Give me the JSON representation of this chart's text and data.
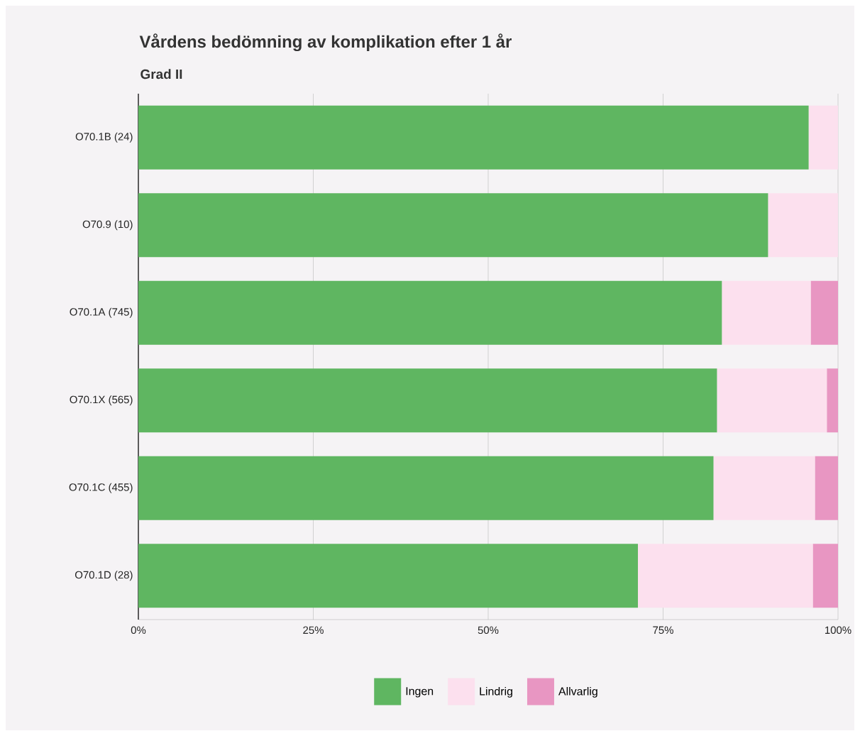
{
  "chart_data": {
    "type": "bar",
    "orientation": "horizontal",
    "stacked": true,
    "title": "Vårdens bedömning av komplikation efter 1 år",
    "subtitle": "Grad II",
    "categories": [
      "O70.1B (24)",
      "O70.9 (10)",
      "O70.1A (745)",
      "O70.1X (565)",
      "O70.1C (455)",
      "O70.1D (28)"
    ],
    "series": [
      {
        "name": "Ingen",
        "color": "#5fb661",
        "values": [
          95.8,
          90.0,
          83.4,
          82.7,
          82.2,
          71.4
        ]
      },
      {
        "name": "Lindrig",
        "color": "#fce0ee",
        "values": [
          4.2,
          10.0,
          12.7,
          15.7,
          14.5,
          25.0
        ]
      },
      {
        "name": "Allvarlig",
        "color": "#e896c2",
        "values": [
          0,
          0,
          3.9,
          1.6,
          3.3,
          3.6
        ]
      }
    ],
    "xlim": [
      0,
      100
    ],
    "xticks": [
      {
        "value": 0,
        "label": "0%"
      },
      {
        "value": 25,
        "label": "25%"
      },
      {
        "value": 50,
        "label": "50%"
      },
      {
        "value": 75,
        "label": "75%"
      },
      {
        "value": 100,
        "label": "100%"
      }
    ],
    "grid": "x",
    "legend": "bottom"
  }
}
